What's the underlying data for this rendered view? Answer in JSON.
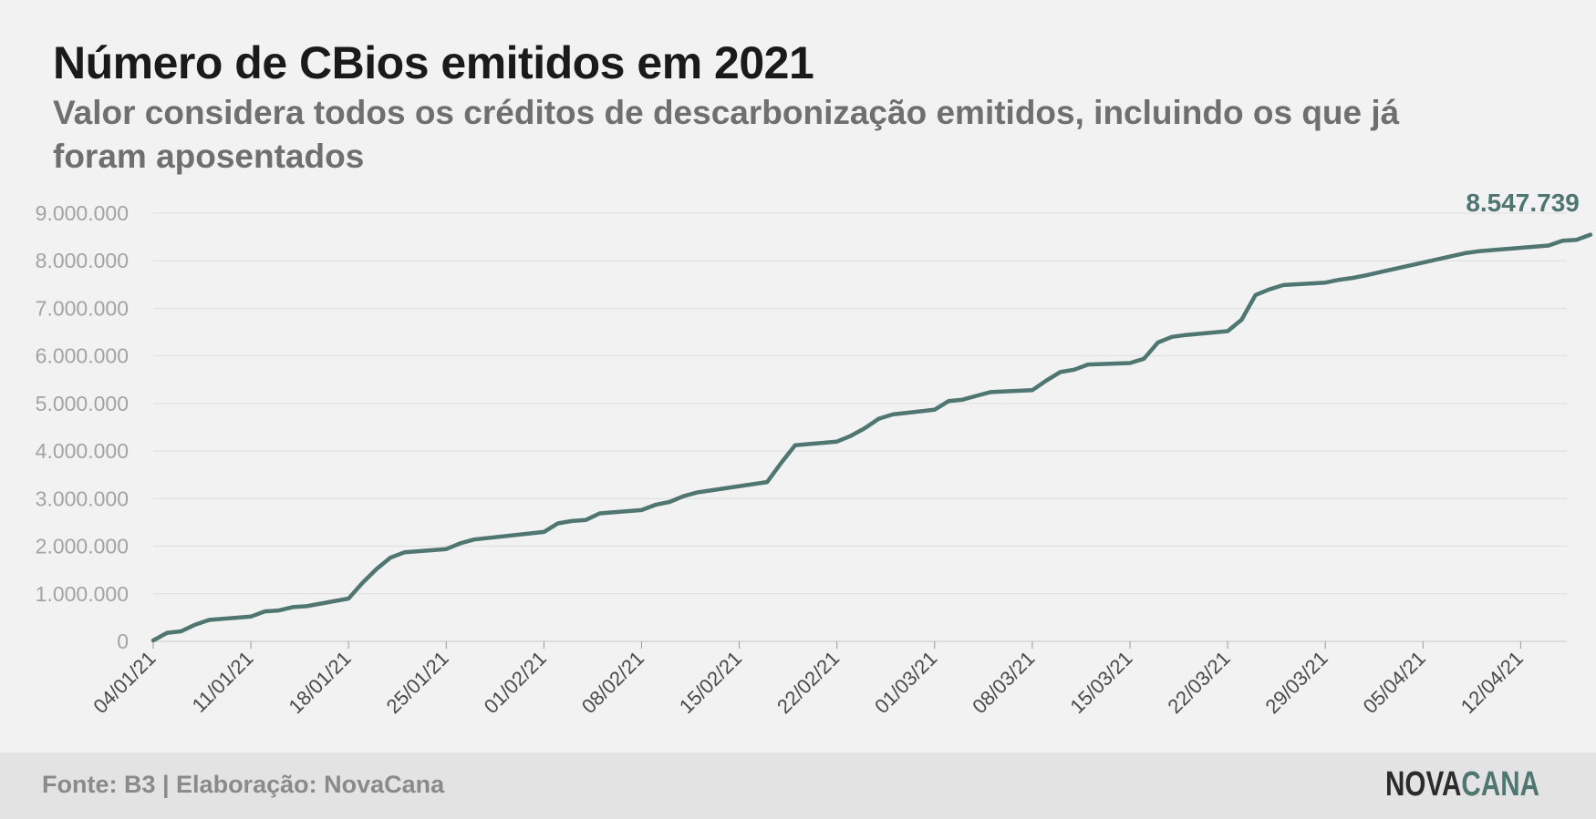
{
  "header": {
    "title": "Número de CBios emitidos em 2021",
    "subtitle": "Valor considera todos os créditos de descarbonização emitidos, incluindo os que já foram aposentados"
  },
  "footer": {
    "source": "Fonte: B3 | Elaboração: NovaCana",
    "logo_part1": "NOVA",
    "logo_part2": "CANA"
  },
  "colors": {
    "line": "#4f7670",
    "grid": "#dedede",
    "background": "#f2f2f2",
    "footer_bg": "#e3e3e3"
  },
  "chart_data": {
    "type": "line",
    "x_start": "2021-01-04",
    "ylim": [
      0,
      9000000
    ],
    "yticks": [
      0,
      1000000,
      2000000,
      3000000,
      4000000,
      5000000,
      6000000,
      7000000,
      8000000,
      9000000
    ],
    "ytick_labels": [
      "0",
      "1.000.000",
      "2.000.000",
      "3.000.000",
      "4.000.000",
      "5.000.000",
      "6.000.000",
      "7.000.000",
      "8.000.000",
      "9.000.000"
    ],
    "xtick_labels": [
      "04/01/21",
      "11/01/21",
      "18/01/21",
      "25/01/21",
      "01/02/21",
      "08/02/21",
      "15/02/21",
      "22/02/21",
      "01/03/21",
      "08/03/21",
      "15/03/21",
      "22/03/21",
      "29/03/21",
      "05/04/21",
      "12/04/21"
    ],
    "grid": true,
    "end_label": "8.547.739",
    "series": [
      {
        "x": [
          "2021-01-04",
          "2021-01-05",
          "2021-01-06",
          "2021-01-07",
          "2021-01-08",
          "2021-01-11",
          "2021-01-12",
          "2021-01-13",
          "2021-01-14",
          "2021-01-15",
          "2021-01-18",
          "2021-01-19",
          "2021-01-20",
          "2021-01-21",
          "2021-01-22",
          "2021-01-25",
          "2021-01-26",
          "2021-01-27",
          "2021-02-01",
          "2021-02-02",
          "2021-02-03",
          "2021-02-04",
          "2021-02-05",
          "2021-02-08",
          "2021-02-09",
          "2021-02-10",
          "2021-02-11",
          "2021-02-12",
          "2021-02-17",
          "2021-02-18",
          "2021-02-19",
          "2021-02-22",
          "2021-02-23",
          "2021-02-24",
          "2021-02-25",
          "2021-02-26",
          "2021-03-01",
          "2021-03-02",
          "2021-03-03",
          "2021-03-04",
          "2021-03-05",
          "2021-03-08",
          "2021-03-09",
          "2021-03-10",
          "2021-03-11",
          "2021-03-12",
          "2021-03-15",
          "2021-03-16",
          "2021-03-17",
          "2021-03-18",
          "2021-03-19",
          "2021-03-22",
          "2021-03-23",
          "2021-03-24",
          "2021-03-25",
          "2021-03-26",
          "2021-03-29",
          "2021-03-30",
          "2021-03-31",
          "2021-04-01",
          "2021-04-08",
          "2021-04-09",
          "2021-04-14",
          "2021-04-15",
          "2021-04-16",
          "2021-04-17"
        ],
        "values": [
          20000,
          180000,
          210000,
          350000,
          450000,
          520000,
          630000,
          650000,
          720000,
          740000,
          900000,
          1230000,
          1520000,
          1760000,
          1870000,
          1940000,
          2060000,
          2140000,
          2300000,
          2480000,
          2530000,
          2550000,
          2690000,
          2760000,
          2870000,
          2930000,
          3050000,
          3130000,
          3350000,
          3750000,
          4120000,
          4200000,
          4320000,
          4480000,
          4680000,
          4770000,
          4870000,
          5050000,
          5080000,
          5160000,
          5240000,
          5280000,
          5480000,
          5660000,
          5710000,
          5820000,
          5850000,
          5940000,
          6280000,
          6400000,
          6440000,
          6520000,
          6760000,
          7280000,
          7400000,
          7490000,
          7540000,
          7600000,
          7640000,
          7700000,
          8160000,
          8200000,
          8320000,
          8420000,
          8440000,
          8547739
        ]
      }
    ]
  }
}
